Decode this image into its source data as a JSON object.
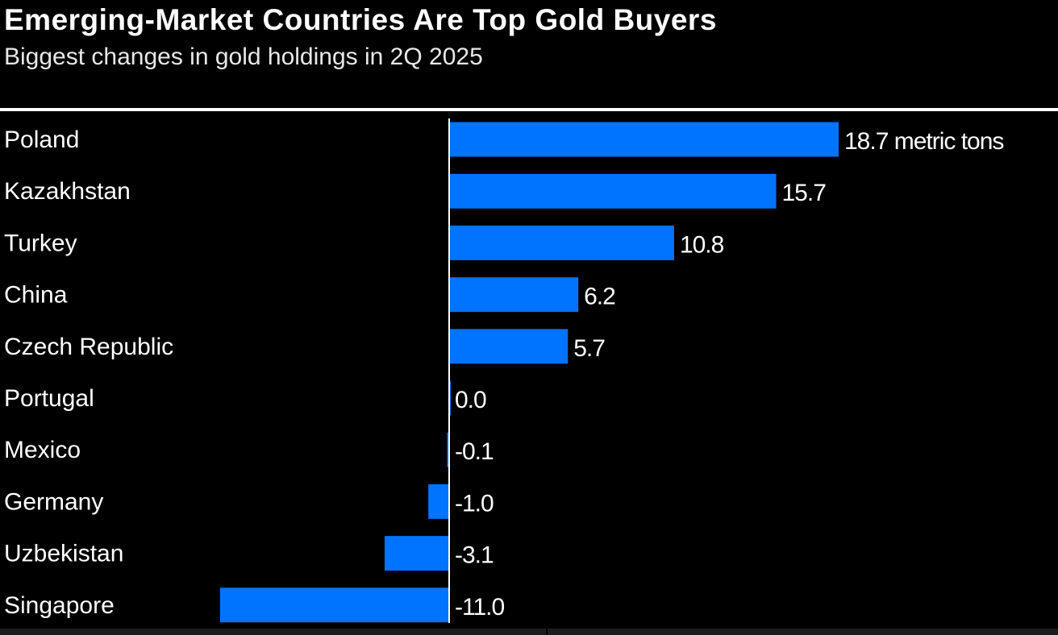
{
  "chart_data": {
    "type": "bar",
    "orientation": "horizontal",
    "title": "Emerging-Market Countries Are Top Gold Buyers",
    "subtitle": "Biggest changes in gold holdings in 2Q 2025",
    "unit_label": "metric tons",
    "categories": [
      "Poland",
      "Kazakhstan",
      "Turkey",
      "China",
      "Czech Republic",
      "Portugal",
      "Mexico",
      "Germany",
      "Uzbekistan",
      "Singapore"
    ],
    "values": [
      18.7,
      15.7,
      10.8,
      6.2,
      5.7,
      0.0,
      -0.1,
      -1.0,
      -3.1,
      -11.0
    ],
    "data_labels": [
      "18.7 metric tons",
      "15.7",
      "10.8",
      "6.2",
      "5.7",
      "0.0",
      "-0.1",
      "-1.0",
      "-3.1",
      "-11.0"
    ],
    "xlim": [
      -11.0,
      18.7
    ],
    "grid": false,
    "legend": "none",
    "colors": {
      "bar": "#0073ff",
      "background": "#000000",
      "text": "#ffffff"
    }
  }
}
